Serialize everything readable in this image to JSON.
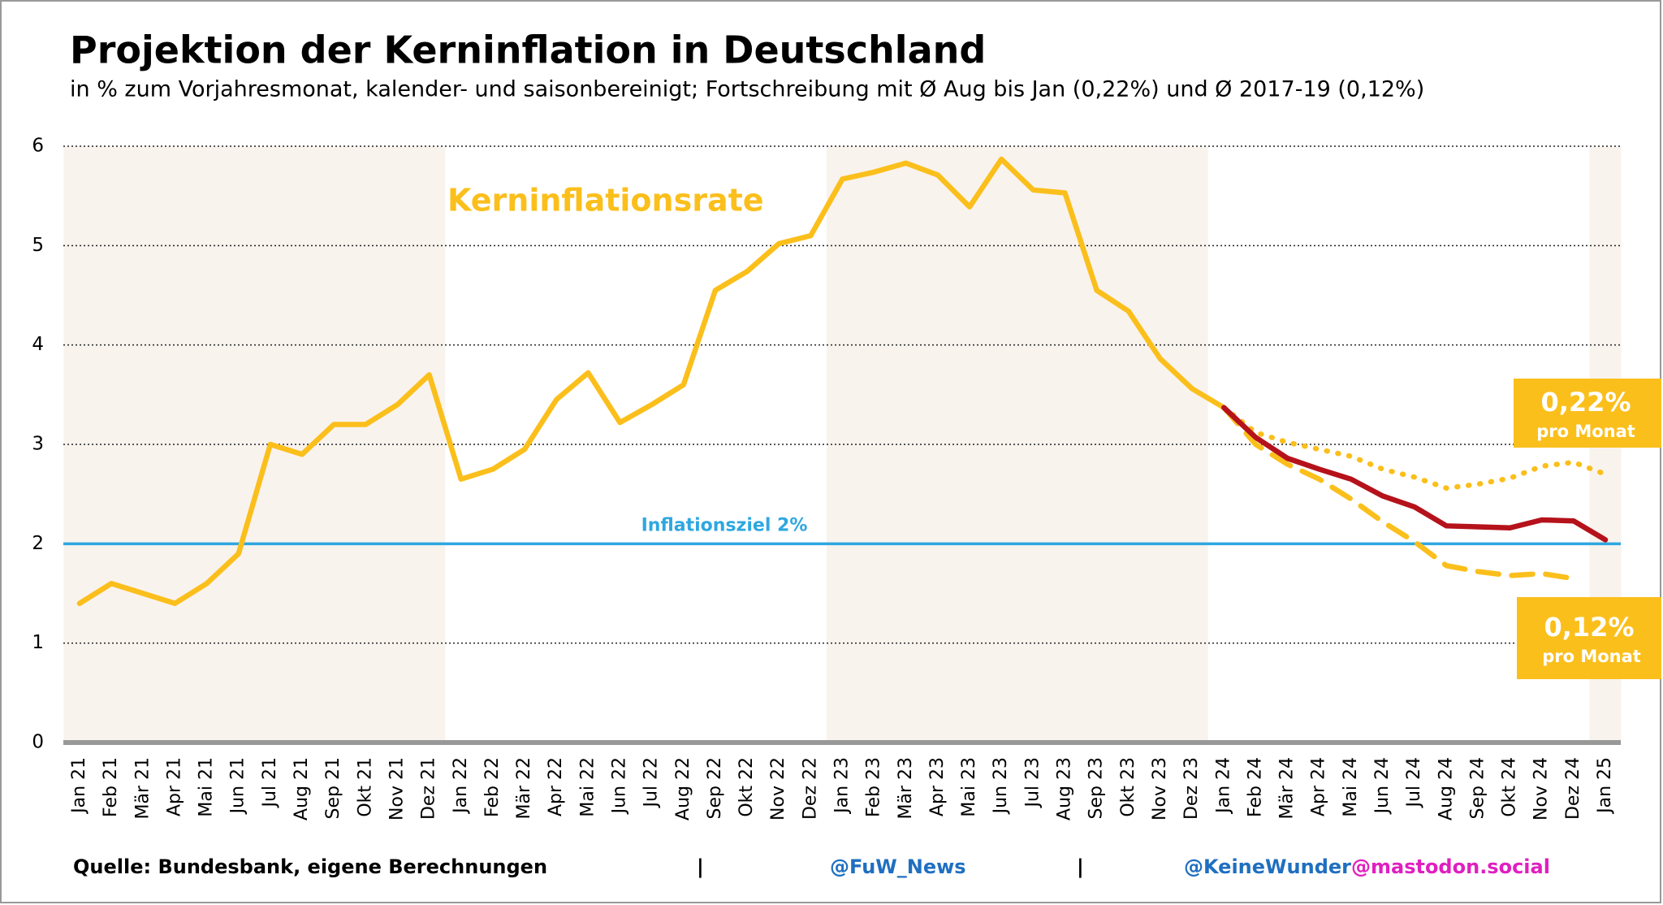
{
  "chart_data": {
    "type": "line",
    "title": "Projektion der Kerninflation in Deutschland",
    "subtitle": "in % zum Vorjahresmonat, kalender- und saisonbereinigt; Fortschreibung mit Ø Aug bis Jan (0,22%) und Ø 2017-19 (0,12%)",
    "categories": [
      "Jan 21",
      "Feb 21",
      "Mär 21",
      "Apr 21",
      "Mai 21",
      "Jun 21",
      "Jul 21",
      "Aug 21",
      "Sep 21",
      "Okt 21",
      "Nov 21",
      "Dez 21",
      "Jan 22",
      "Feb 22",
      "Mär 22",
      "Apr 22",
      "Mai 22",
      "Jun 22",
      "Jul 22",
      "Aug 22",
      "Sep 22",
      "Okt 22",
      "Nov 22",
      "Dez 22",
      "Jan 23",
      "Feb 23",
      "Mär 23",
      "Apr 23",
      "Mai 23",
      "Jun 23",
      "Jul 23",
      "Aug 23",
      "Sep 23",
      "Okt 23",
      "Nov 23",
      "Dez 23",
      "Jan 24",
      "Feb 24",
      "Mär 24",
      "Apr 24",
      "Mai 24",
      "Jun 24",
      "Jul 24",
      "Aug 24",
      "Sep 24",
      "Okt 24",
      "Nov 24",
      "Dez 24",
      "Jan 25"
    ],
    "series": [
      {
        "name": "Kerninflationsrate",
        "color": "#fbbf1c",
        "style": "solid",
        "values": [
          1.4,
          1.6,
          1.5,
          1.4,
          1.6,
          1.9,
          3.0,
          2.9,
          3.2,
          3.2,
          3.4,
          3.7,
          2.65,
          2.75,
          2.95,
          3.45,
          3.72,
          3.22,
          3.4,
          3.6,
          4.55,
          4.74,
          5.02,
          5.1,
          5.67,
          5.74,
          5.83,
          5.71,
          5.39,
          5.87,
          5.56,
          5.53,
          4.55,
          4.34,
          3.86,
          3.56,
          3.37,
          null,
          null,
          null,
          null,
          null,
          null,
          null,
          null,
          null,
          null,
          null,
          null
        ]
      },
      {
        "color": "#fbbf1c",
        "style": "dotted",
        "values": [
          null,
          null,
          null,
          null,
          null,
          null,
          null,
          null,
          null,
          null,
          null,
          null,
          null,
          null,
          null,
          null,
          null,
          null,
          null,
          null,
          null,
          null,
          null,
          null,
          null,
          null,
          null,
          null,
          null,
          null,
          null,
          null,
          null,
          null,
          null,
          null,
          3.37,
          3.12,
          3.02,
          2.95,
          2.88,
          2.75,
          2.67,
          2.56,
          2.6,
          2.66,
          2.78,
          2.82,
          2.7
        ]
      },
      {
        "color": "#fbbf1c",
        "style": "dashed",
        "values": [
          null,
          null,
          null,
          null,
          null,
          null,
          null,
          null,
          null,
          null,
          null,
          null,
          null,
          null,
          null,
          null,
          null,
          null,
          null,
          null,
          null,
          null,
          null,
          null,
          null,
          null,
          null,
          null,
          null,
          null,
          null,
          null,
          null,
          null,
          null,
          null,
          3.37,
          3.0,
          2.8,
          2.65,
          2.45,
          2.22,
          2.02,
          1.78,
          1.72,
          1.68,
          1.7,
          1.65,
          null
        ]
      },
      {
        "color": "#b5121b",
        "style": "solid",
        "values": [
          null,
          null,
          null,
          null,
          null,
          null,
          null,
          null,
          null,
          null,
          null,
          null,
          null,
          null,
          null,
          null,
          null,
          null,
          null,
          null,
          null,
          null,
          null,
          null,
          null,
          null,
          null,
          null,
          null,
          null,
          null,
          null,
          null,
          null,
          null,
          null,
          3.37,
          3.07,
          2.86,
          2.75,
          2.65,
          2.48,
          2.37,
          2.18,
          2.17,
          2.16,
          2.24,
          2.23,
          2.04
        ]
      }
    ],
    "ylim": [
      0,
      6
    ],
    "yticks": [
      0,
      1,
      2,
      3,
      4,
      5,
      6
    ],
    "grid": true,
    "target_line": {
      "value": 2,
      "label": "Inflationsziel 2%",
      "color": "#2ea7e0"
    },
    "box_high": {
      "rate": "0,22%",
      "unit": "pro Monat"
    },
    "box_low": {
      "rate": "0,12%",
      "unit": "pro Monat"
    }
  },
  "footer": {
    "source": "Quelle: Bundesbank, eigene Berechnungen",
    "separator": "|",
    "handle": "@FuW_News",
    "mastodon_user": "@KeineWunder",
    "mastodon_host": "@mastodon.social"
  }
}
